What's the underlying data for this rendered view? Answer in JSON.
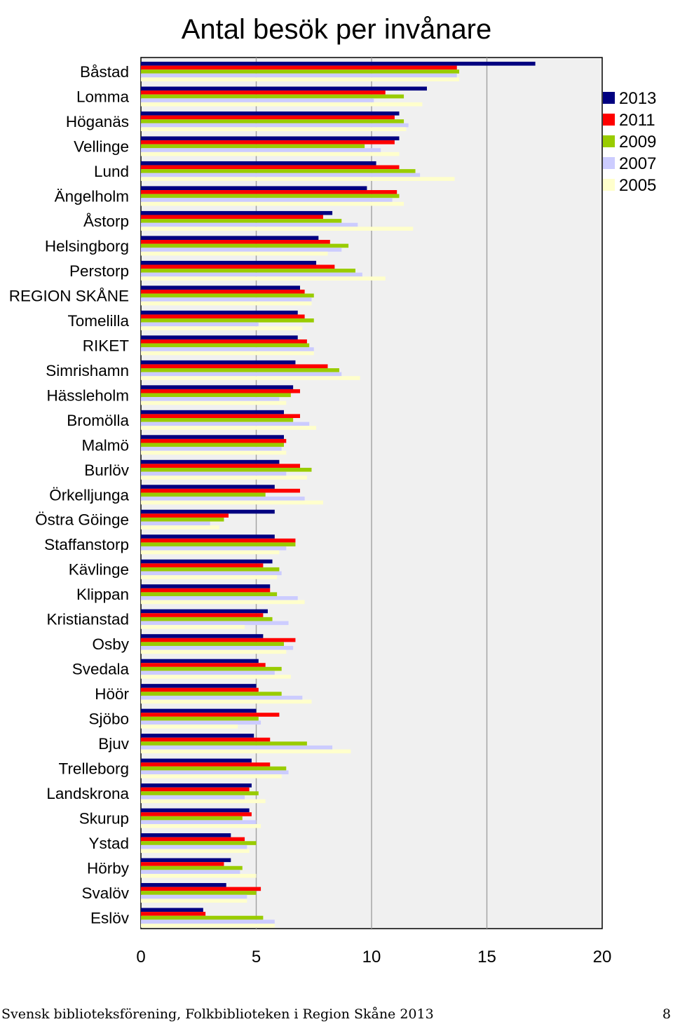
{
  "footer": {
    "left_text": "Svensk biblioteksförening, Folkbiblioteken i Region Skåne 2013",
    "page_number": "8"
  },
  "chart_data": {
    "type": "bar",
    "orientation": "horizontal",
    "title": "Antal besök per invånare",
    "xlabel": "",
    "ylabel": "",
    "xlim": [
      0,
      20
    ],
    "xticks": [
      "0",
      "5",
      "10",
      "15",
      "20"
    ],
    "grid": "vertical gridlines at 5, 10, 15",
    "legend_position": "right",
    "categories": [
      "Båstad",
      "Lomma",
      "Höganäs",
      "Vellinge",
      "Lund",
      "Ängelholm",
      "Åstorp",
      "Helsingborg",
      "Perstorp",
      "REGION SKÅNE",
      "Tomelilla",
      "RIKET",
      "Simrishamn",
      "Hässleholm",
      "Bromölla",
      "Malmö",
      "Burlöv",
      "Örkelljunga",
      "Östra Göinge",
      "Staffanstorp",
      "Kävlinge",
      "Klippan",
      "Kristianstad",
      "Osby",
      "Svedala",
      "Höör",
      "Sjöbo",
      "Bjuv",
      "Trelleborg",
      "Landskrona",
      "Skurup",
      "Ystad",
      "Hörby",
      "Svalöv",
      "Eslöv"
    ],
    "series": [
      {
        "name": "2013",
        "color": "#000080",
        "values": [
          17.1,
          12.4,
          11.2,
          11.2,
          10.2,
          9.8,
          8.3,
          7.7,
          7.6,
          6.9,
          6.8,
          6.8,
          6.7,
          6.6,
          6.2,
          6.2,
          6.0,
          5.8,
          5.8,
          5.8,
          5.7,
          5.6,
          5.5,
          5.3,
          5.1,
          5.0,
          5.0,
          4.9,
          4.8,
          4.8,
          4.7,
          3.9,
          3.9,
          3.7,
          2.7
        ]
      },
      {
        "name": "2011",
        "color": "#ff0000",
        "values": [
          13.7,
          10.6,
          11.0,
          11.0,
          11.2,
          11.1,
          7.9,
          8.2,
          8.4,
          7.1,
          7.1,
          7.2,
          8.1,
          6.9,
          6.9,
          6.3,
          6.9,
          6.9,
          3.8,
          6.7,
          5.3,
          5.6,
          5.3,
          6.7,
          5.4,
          5.1,
          6.0,
          5.6,
          5.6,
          4.7,
          4.8,
          4.5,
          3.6,
          5.2,
          2.8
        ]
      },
      {
        "name": "2009",
        "color": "#99cc00",
        "values": [
          13.8,
          11.4,
          11.4,
          9.7,
          11.9,
          11.2,
          8.7,
          9.0,
          9.3,
          7.5,
          7.5,
          7.3,
          8.6,
          6.5,
          6.6,
          6.2,
          7.4,
          5.4,
          3.6,
          6.7,
          6.0,
          5.9,
          5.7,
          6.2,
          6.1,
          6.1,
          5.1,
          7.2,
          6.3,
          5.1,
          4.4,
          5.0,
          4.4,
          5.0,
          5.3
        ]
      },
      {
        "name": "2007",
        "color": "#ccccff",
        "values": [
          13.7,
          10.1,
          11.6,
          10.4,
          12.1,
          10.9,
          9.4,
          8.7,
          9.6,
          7.4,
          5.1,
          7.5,
          8.7,
          6.0,
          7.3,
          6.1,
          6.3,
          7.1,
          3.0,
          6.3,
          6.1,
          6.8,
          6.4,
          6.6,
          5.8,
          7.0,
          5.2,
          8.3,
          6.4,
          4.5,
          5.0,
          4.6,
          4.3,
          4.6,
          5.8
        ]
      },
      {
        "name": "2005",
        "color": "#ffffcc",
        "values": [
          13.8,
          12.2,
          11.5,
          11.2,
          13.6,
          11.4,
          11.8,
          8.1,
          10.6,
          7.4,
          7.0,
          7.5,
          9.5,
          6.3,
          7.6,
          6.3,
          7.2,
          7.9,
          3.4,
          6.0,
          5.9,
          7.1,
          4.5,
          6.3,
          6.5,
          7.4,
          4.2,
          9.1,
          6.1,
          5.4,
          5.2,
          4.7,
          5.0,
          4.6,
          5.8
        ]
      }
    ]
  }
}
